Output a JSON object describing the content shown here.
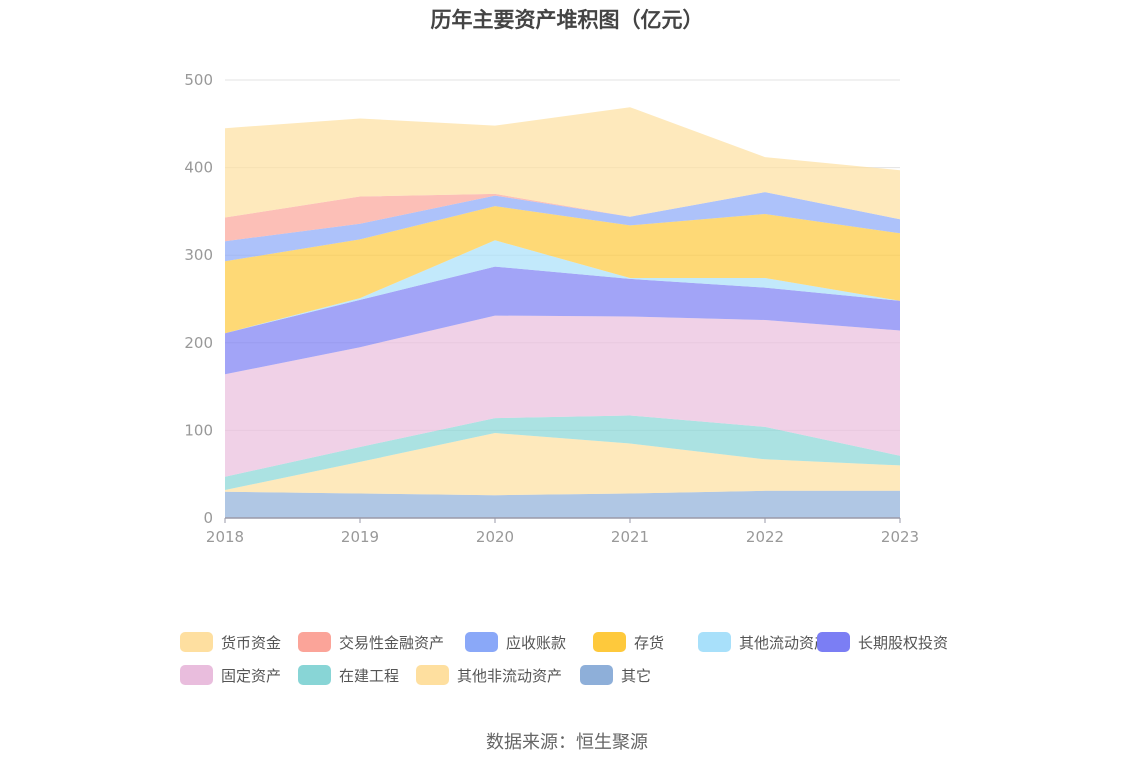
{
  "chart_data": {
    "type": "area",
    "stacked": true,
    "title": "历年主要资产堆积图（亿元）",
    "categories": [
      "2018",
      "2019",
      "2020",
      "2021",
      "2022",
      "2023"
    ],
    "ylim": [
      0,
      500
    ],
    "yticks": [
      0,
      100,
      200,
      300,
      400,
      500
    ],
    "grid": true,
    "legend_position": "bottom",
    "series_bottom_to_top": [
      {
        "name": "其它",
        "color": "#8eafd9",
        "values": [
          30,
          28,
          26,
          28,
          31,
          31
        ]
      },
      {
        "name": "其他非流动资产",
        "color": "#fedf9f",
        "values": [
          2,
          36,
          71,
          57,
          36,
          29
        ]
      },
      {
        "name": "在建工程",
        "color": "#88d5d6",
        "values": [
          15,
          17,
          17,
          32,
          37,
          11
        ]
      },
      {
        "name": "固定资产",
        "color": "#e9bddd",
        "values": [
          117,
          114,
          117,
          113,
          122,
          143
        ]
      },
      {
        "name": "长期股权投资",
        "color": "#7b7ef4",
        "values": [
          47,
          54,
          56,
          43,
          37,
          34
        ]
      },
      {
        "name": "其他流动资产",
        "color": "#a8e0fa",
        "values": [
          0,
          2,
          30,
          1,
          11,
          0
        ]
      },
      {
        "name": "存货",
        "color": "#fec93c",
        "values": [
          82,
          67,
          39,
          60,
          73,
          77
        ]
      },
      {
        "name": "应收账款",
        "color": "#8aa8f8",
        "values": [
          23,
          18,
          12,
          10,
          25,
          16
        ]
      },
      {
        "name": "交易性金融资产",
        "color": "#fba499",
        "values": [
          27,
          31,
          2,
          0,
          0,
          0
        ]
      },
      {
        "name": "货币资金",
        "color": "#fedfa0",
        "values": [
          102,
          89,
          78,
          125,
          40,
          56
        ]
      }
    ]
  },
  "legend_order": [
    "货币资金",
    "交易性金融资产",
    "应收账款",
    "存货",
    "其他流动资产",
    "长期股权投资",
    "固定资产",
    "在建工程",
    "其他非流动资产",
    "其它"
  ],
  "source_text": "数据来源：恒生聚源"
}
